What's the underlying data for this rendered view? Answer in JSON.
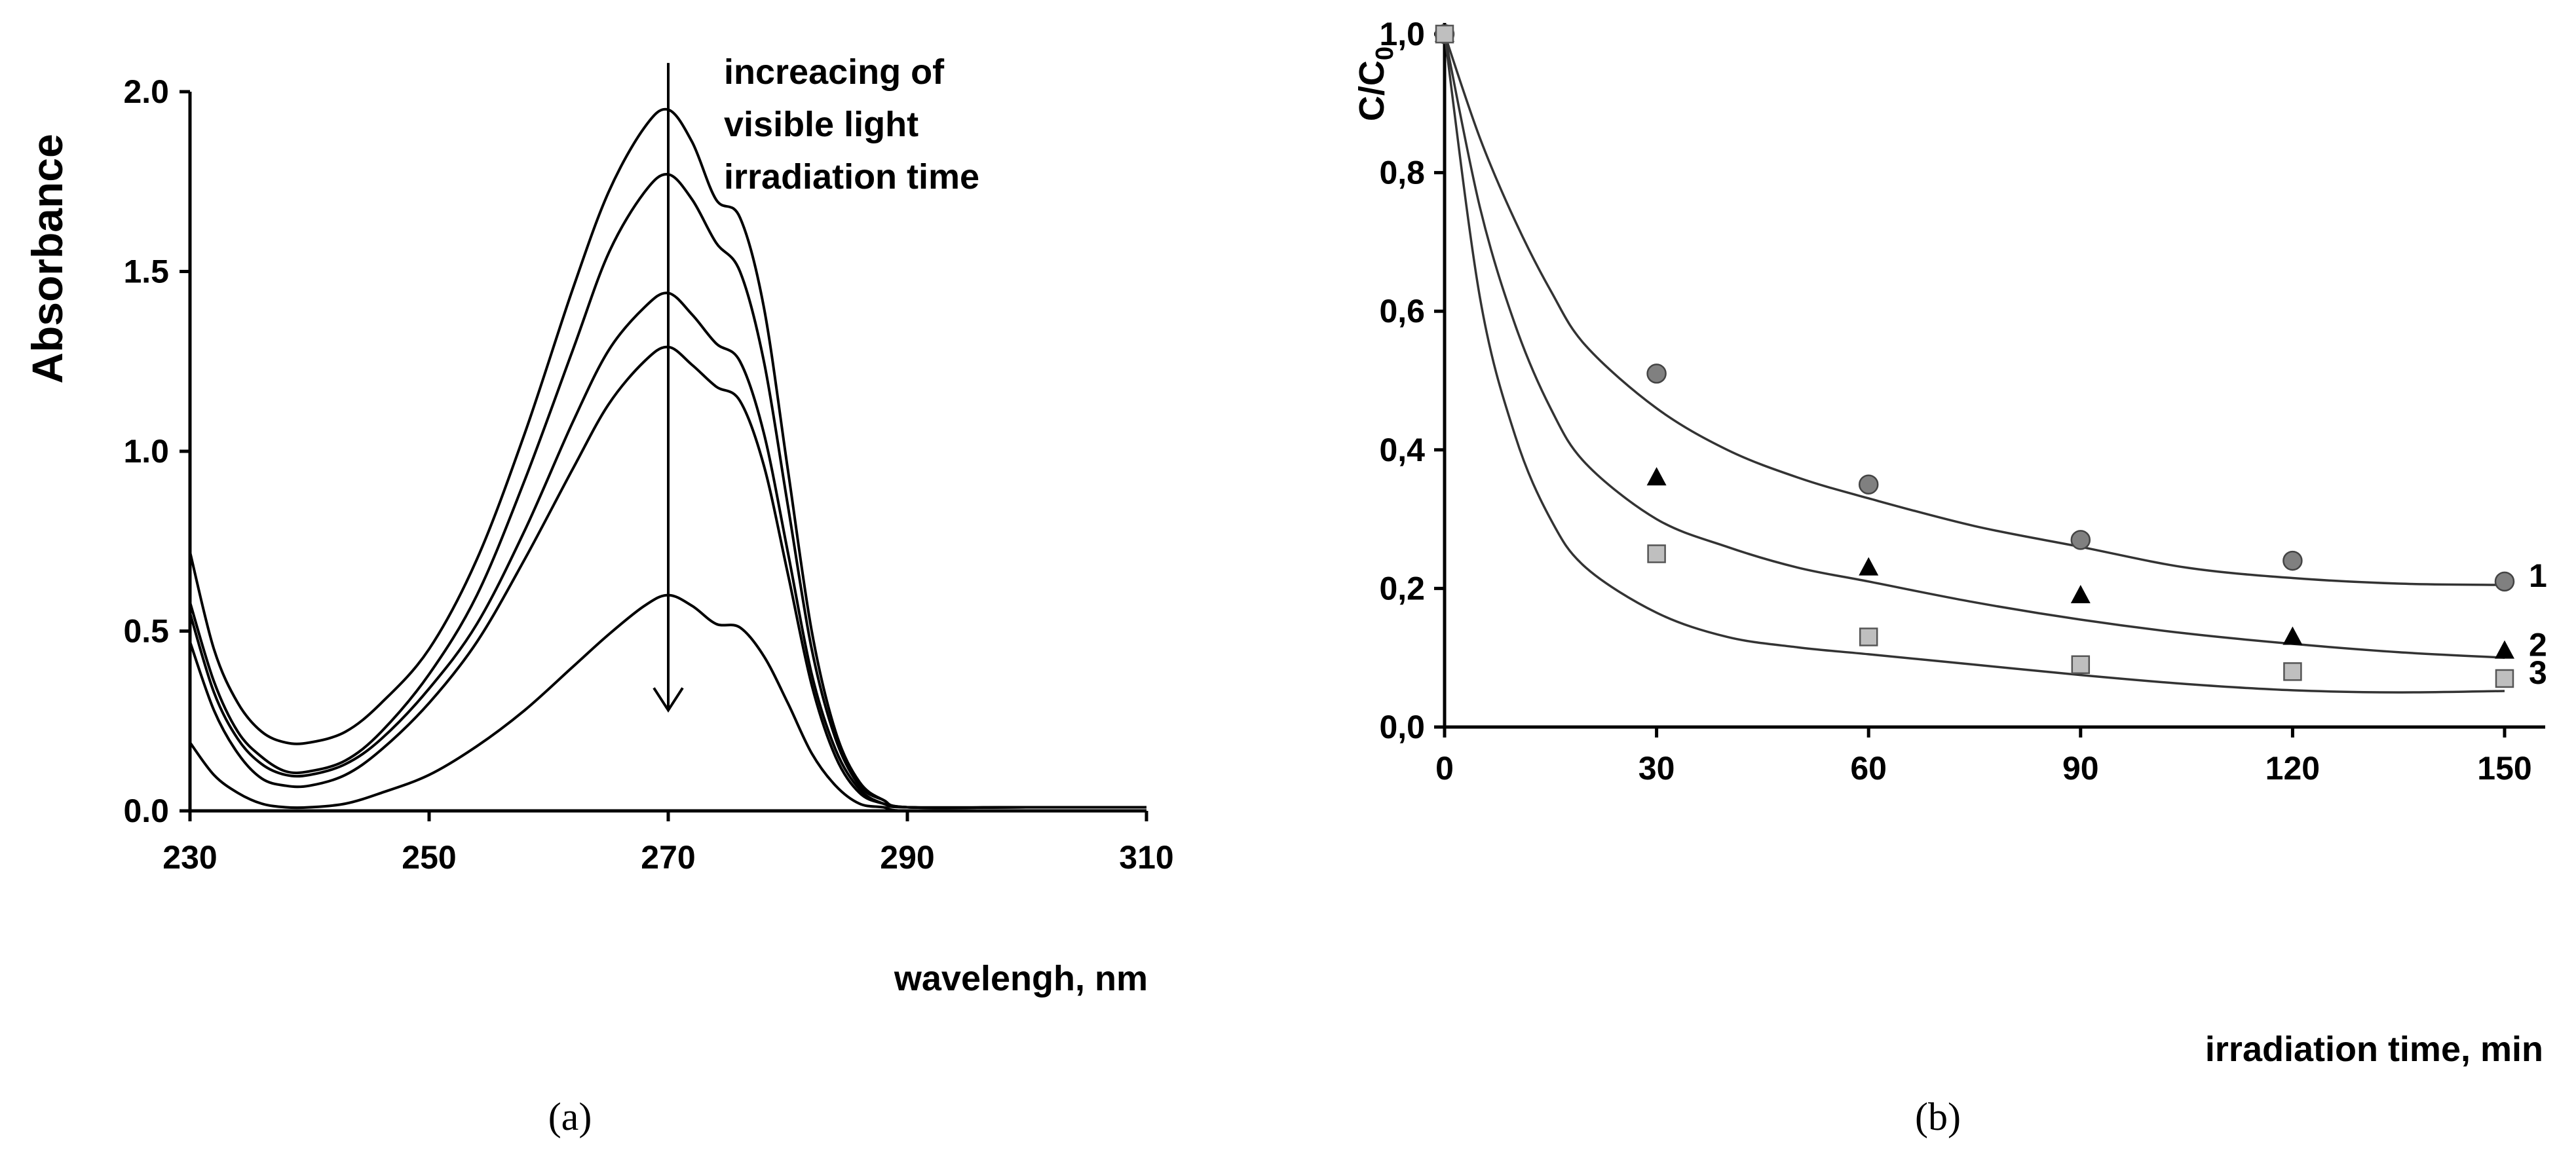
{
  "chart_data": [
    {
      "type": "line",
      "panel": "(a)",
      "title": "",
      "xlabel": "wavelengh, nm",
      "ylabel": "Absorbance",
      "xlim": [
        230,
        310
      ],
      "ylim": [
        0,
        2.0
      ],
      "x_ticks": [
        "230",
        "250",
        "270",
        "290",
        "310"
      ],
      "y_ticks": [
        "0.0",
        "0.5",
        "1.0",
        "1.5",
        "2.0"
      ],
      "annotation": [
        "increacing of",
        "visible light",
        "irradiation time"
      ],
      "arrow_x": 270,
      "arrow_from_y": 2.08,
      "arrow_to_y": 0.28,
      "series": [
        {
          "name": "spectrum 1",
          "points": [
            [
              230,
              0.72
            ],
            [
              232,
              0.45
            ],
            [
              234,
              0.3
            ],
            [
              236,
              0.22
            ],
            [
              238,
              0.19
            ],
            [
              240,
              0.19
            ],
            [
              243,
              0.22
            ],
            [
              246,
              0.3
            ],
            [
              250,
              0.45
            ],
            [
              254,
              0.7
            ],
            [
              258,
              1.05
            ],
            [
              262,
              1.45
            ],
            [
              265,
              1.72
            ],
            [
              268,
              1.9
            ],
            [
              270,
              1.95
            ],
            [
              272,
              1.86
            ],
            [
              274,
              1.7
            ],
            [
              276,
              1.65
            ],
            [
              278,
              1.4
            ],
            [
              280,
              0.95
            ],
            [
              282,
              0.5
            ],
            [
              284,
              0.22
            ],
            [
              286,
              0.08
            ],
            [
              288,
              0.03
            ],
            [
              290,
              0.01
            ],
            [
              300,
              0.01
            ],
            [
              310,
              0.01
            ]
          ]
        },
        {
          "name": "spectrum 2",
          "points": [
            [
              230,
              0.58
            ],
            [
              232,
              0.36
            ],
            [
              234,
              0.22
            ],
            [
              236,
              0.15
            ],
            [
              238,
              0.11
            ],
            [
              240,
              0.11
            ],
            [
              243,
              0.14
            ],
            [
              246,
              0.22
            ],
            [
              250,
              0.38
            ],
            [
              254,
              0.6
            ],
            [
              258,
              0.92
            ],
            [
              262,
              1.28
            ],
            [
              265,
              1.55
            ],
            [
              268,
              1.72
            ],
            [
              270,
              1.77
            ],
            [
              272,
              1.7
            ],
            [
              274,
              1.58
            ],
            [
              276,
              1.5
            ],
            [
              278,
              1.25
            ],
            [
              280,
              0.85
            ],
            [
              282,
              0.45
            ],
            [
              284,
              0.2
            ],
            [
              286,
              0.07
            ],
            [
              288,
              0.03
            ],
            [
              290,
              0.01
            ],
            [
              300,
              0.01
            ],
            [
              310,
              0.01
            ]
          ]
        },
        {
          "name": "spectrum 3",
          "points": [
            [
              230,
              0.55
            ],
            [
              232,
              0.33
            ],
            [
              234,
              0.2
            ],
            [
              236,
              0.13
            ],
            [
              238,
              0.1
            ],
            [
              240,
              0.1
            ],
            [
              243,
              0.13
            ],
            [
              246,
              0.2
            ],
            [
              250,
              0.34
            ],
            [
              254,
              0.52
            ],
            [
              258,
              0.78
            ],
            [
              262,
              1.08
            ],
            [
              265,
              1.28
            ],
            [
              268,
              1.4
            ],
            [
              270,
              1.44
            ],
            [
              272,
              1.38
            ],
            [
              274,
              1.3
            ],
            [
              276,
              1.25
            ],
            [
              278,
              1.05
            ],
            [
              280,
              0.72
            ],
            [
              282,
              0.38
            ],
            [
              284,
              0.17
            ],
            [
              286,
              0.06
            ],
            [
              288,
              0.02
            ],
            [
              290,
              0.01
            ],
            [
              300,
              0.01
            ],
            [
              310,
              0.01
            ]
          ]
        },
        {
          "name": "spectrum 4",
          "points": [
            [
              230,
              0.47
            ],
            [
              232,
              0.28
            ],
            [
              234,
              0.16
            ],
            [
              236,
              0.09
            ],
            [
              238,
              0.07
            ],
            [
              240,
              0.07
            ],
            [
              243,
              0.1
            ],
            [
              246,
              0.17
            ],
            [
              250,
              0.3
            ],
            [
              254,
              0.47
            ],
            [
              258,
              0.7
            ],
            [
              262,
              0.95
            ],
            [
              265,
              1.13
            ],
            [
              268,
              1.25
            ],
            [
              270,
              1.29
            ],
            [
              272,
              1.24
            ],
            [
              274,
              1.18
            ],
            [
              276,
              1.14
            ],
            [
              278,
              0.96
            ],
            [
              280,
              0.66
            ],
            [
              282,
              0.35
            ],
            [
              284,
              0.15
            ],
            [
              286,
              0.05
            ],
            [
              288,
              0.02
            ],
            [
              290,
              0.01
            ],
            [
              300,
              0.01
            ],
            [
              310,
              0.01
            ]
          ]
        },
        {
          "name": "spectrum 5",
          "points": [
            [
              230,
              0.19
            ],
            [
              232,
              0.1
            ],
            [
              234,
              0.05
            ],
            [
              236,
              0.02
            ],
            [
              238,
              0.01
            ],
            [
              240,
              0.01
            ],
            [
              243,
              0.02
            ],
            [
              246,
              0.05
            ],
            [
              250,
              0.1
            ],
            [
              254,
              0.18
            ],
            [
              258,
              0.28
            ],
            [
              262,
              0.4
            ],
            [
              265,
              0.49
            ],
            [
              268,
              0.57
            ],
            [
              270,
              0.6
            ],
            [
              272,
              0.57
            ],
            [
              274,
              0.52
            ],
            [
              276,
              0.51
            ],
            [
              278,
              0.43
            ],
            [
              280,
              0.3
            ],
            [
              282,
              0.16
            ],
            [
              284,
              0.07
            ],
            [
              286,
              0.02
            ],
            [
              288,
              0.01
            ],
            [
              290,
              0.0
            ],
            [
              300,
              0.0
            ],
            [
              310,
              0.0
            ]
          ]
        }
      ]
    },
    {
      "type": "scatter",
      "panel": "(b)",
      "title": "",
      "xlabel": "irradiation time, min",
      "ylabel_main": "C/C",
      "ylabel_sub": "0",
      "xlim": [
        0,
        150
      ],
      "ylim": [
        0,
        1.0
      ],
      "x_ticks": [
        "0",
        "30",
        "60",
        "90",
        "120",
        "150"
      ],
      "y_ticks": [
        "0,0",
        "0,2",
        "0,4",
        "0,6",
        "0,8",
        "1,0"
      ],
      "series": [
        {
          "name": "1",
          "marker": "circle",
          "color": "#808080",
          "x": [
            0,
            30,
            60,
            90,
            120,
            150
          ],
          "y": [
            1.0,
            0.51,
            0.35,
            0.27,
            0.24,
            0.21
          ],
          "fit": [
            [
              0,
              1.0
            ],
            [
              5,
              0.85
            ],
            [
              10,
              0.73
            ],
            [
              15,
              0.63
            ],
            [
              20,
              0.55
            ],
            [
              30,
              0.46
            ],
            [
              40,
              0.4
            ],
            [
              50,
              0.36
            ],
            [
              60,
              0.33
            ],
            [
              75,
              0.29
            ],
            [
              90,
              0.26
            ],
            [
              105,
              0.23
            ],
            [
              120,
              0.215
            ],
            [
              135,
              0.207
            ],
            [
              150,
              0.205
            ]
          ]
        },
        {
          "name": "2",
          "marker": "triangle",
          "color": "#000000",
          "x": [
            0,
            30,
            60,
            90,
            120,
            150
          ],
          "y": [
            1.0,
            0.36,
            0.23,
            0.19,
            0.13,
            0.11
          ],
          "fit": [
            [
              0,
              1.0
            ],
            [
              5,
              0.75
            ],
            [
              10,
              0.58
            ],
            [
              15,
              0.46
            ],
            [
              20,
              0.38
            ],
            [
              30,
              0.3
            ],
            [
              40,
              0.26
            ],
            [
              50,
              0.23
            ],
            [
              60,
              0.21
            ],
            [
              75,
              0.18
            ],
            [
              90,
              0.155
            ],
            [
              105,
              0.135
            ],
            [
              120,
              0.12
            ],
            [
              135,
              0.108
            ],
            [
              150,
              0.1
            ]
          ]
        },
        {
          "name": "3",
          "marker": "square",
          "color": "#bfbfbf",
          "x": [
            0,
            30,
            60,
            90,
            120,
            150
          ],
          "y": [
            1.0,
            0.25,
            0.13,
            0.09,
            0.08,
            0.07
          ],
          "fit": [
            [
              0,
              1.0
            ],
            [
              5,
              0.62
            ],
            [
              10,
              0.42
            ],
            [
              15,
              0.3
            ],
            [
              20,
              0.23
            ],
            [
              30,
              0.165
            ],
            [
              40,
              0.13
            ],
            [
              50,
              0.115
            ],
            [
              60,
              0.105
            ],
            [
              75,
              0.09
            ],
            [
              90,
              0.075
            ],
            [
              105,
              0.062
            ],
            [
              120,
              0.053
            ],
            [
              135,
              0.05
            ],
            [
              150,
              0.052
            ]
          ]
        }
      ]
    }
  ]
}
